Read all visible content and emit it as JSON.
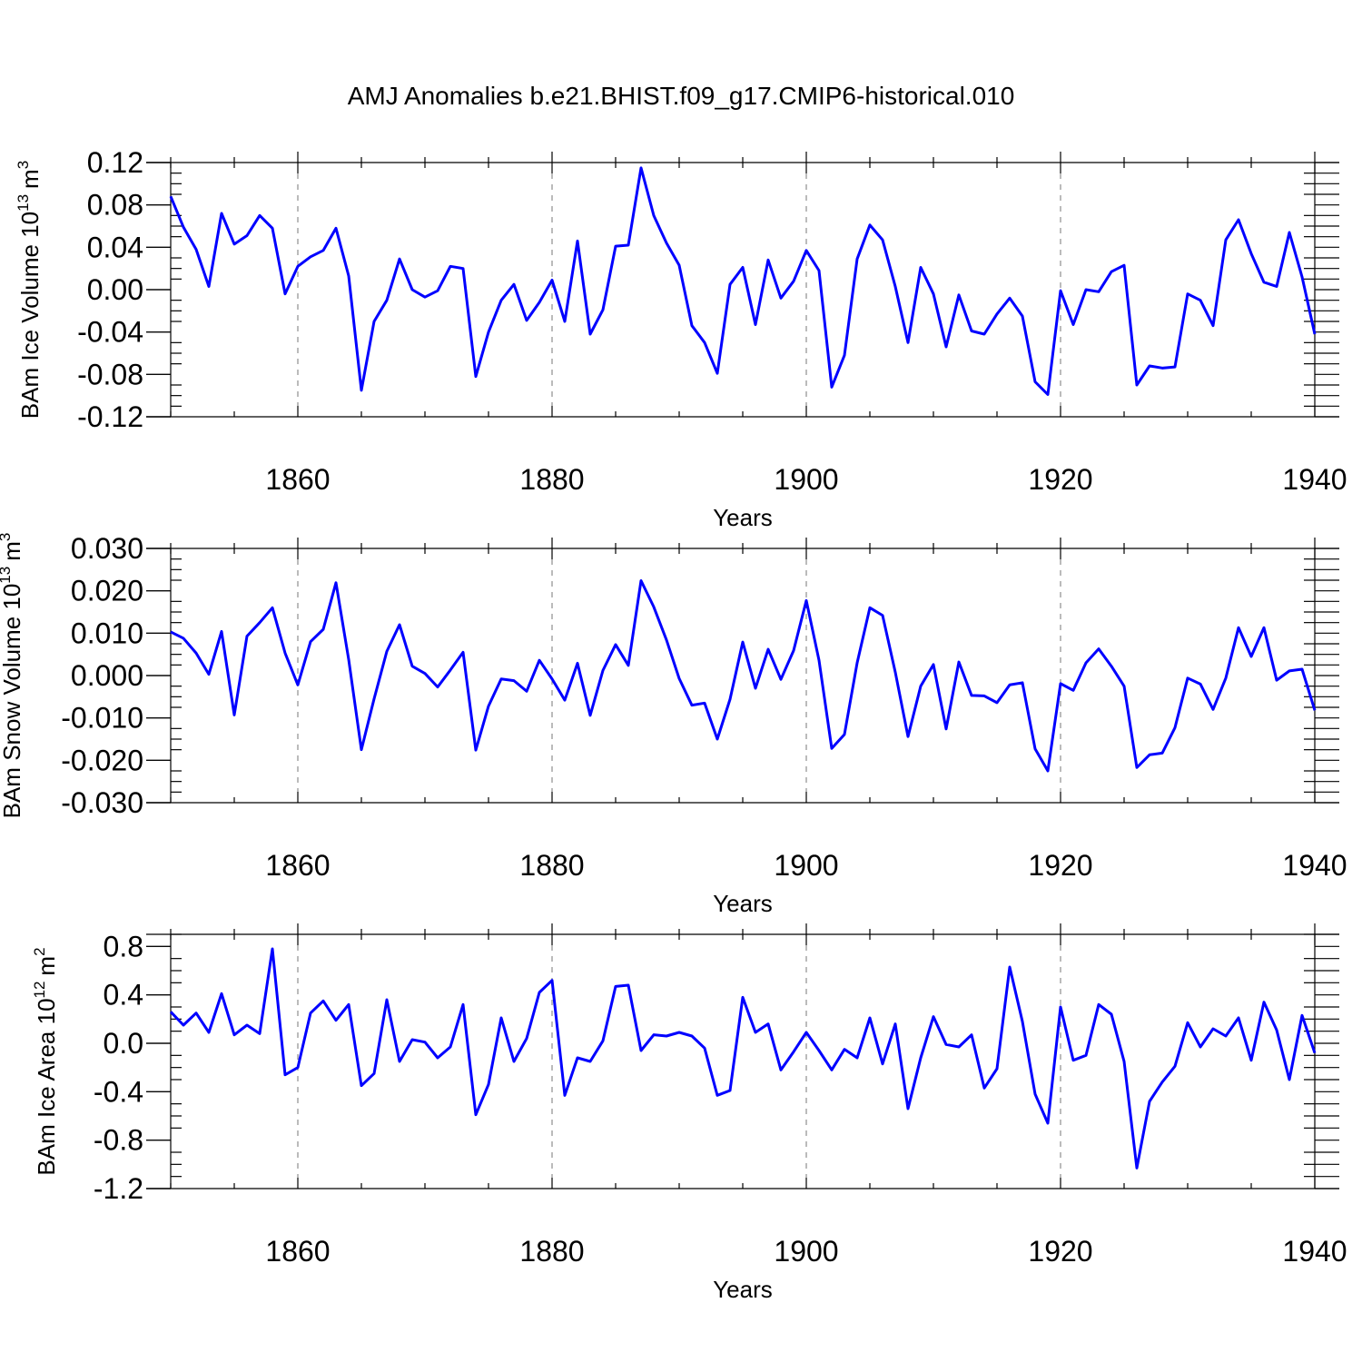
{
  "figure_title": "AMJ Anomalies b.e21.BHIST.f09_g17.CMIP6-historical.010",
  "line_color": "#0000ff",
  "chart_data": [
    {
      "type": "line",
      "ylabel": "BAm Ice Volume 10",
      "ylabel_sup": "13",
      "ylabel_unit": "m",
      "ylabel_unit_sup": "3",
      "xlabel": "Years",
      "xlim": [
        1850,
        1940
      ],
      "ylim": [
        -0.12,
        0.12
      ],
      "xticks": [
        "1860",
        "1880",
        "1900",
        "1920",
        "1940"
      ],
      "xtick_values": [
        1860,
        1880,
        1900,
        1920,
        1940
      ],
      "yticks": [
        "0.12",
        "0.08",
        "0.04",
        "0.00",
        "-0.04",
        "-0.08",
        "-0.12"
      ],
      "ytick_values": [
        0.12,
        0.08,
        0.04,
        0.0,
        -0.04,
        -0.08,
        -0.12
      ],
      "grid": "dashed vertical at major x ticks",
      "x_start": 1850,
      "values": [
        0.088,
        0.059,
        0.038,
        0.003,
        0.072,
        0.043,
        0.051,
        0.07,
        0.058,
        -0.004,
        0.022,
        0.031,
        0.037,
        0.058,
        0.013,
        -0.095,
        -0.03,
        -0.01,
        0.029,
        0.0,
        -0.007,
        -0.001,
        0.022,
        0.02,
        -0.082,
        -0.04,
        -0.01,
        0.005,
        -0.029,
        -0.012,
        0.009,
        -0.03,
        0.046,
        -0.042,
        -0.019,
        0.041,
        0.042,
        0.115,
        0.07,
        0.044,
        0.023,
        -0.034,
        -0.05,
        -0.079,
        0.005,
        0.021,
        -0.033,
        0.028,
        -0.008,
        0.008,
        0.037,
        0.018,
        -0.092,
        -0.062,
        0.029,
        0.061,
        0.047,
        0.003,
        -0.05,
        0.021,
        -0.004,
        -0.054,
        -0.005,
        -0.039,
        -0.042,
        -0.023,
        -0.008,
        -0.025,
        -0.087,
        -0.099,
        -0.001,
        -0.033,
        0.0,
        -0.002,
        0.017,
        0.023,
        -0.09,
        -0.072,
        -0.074,
        -0.073,
        -0.004,
        -0.01,
        -0.034,
        0.047,
        0.066,
        0.034,
        0.007,
        0.003,
        0.054,
        0.012,
        -0.042
      ]
    },
    {
      "type": "line",
      "ylabel": "BAm Snow Volume 10",
      "ylabel_sup": "13",
      "ylabel_unit": "m",
      "ylabel_unit_sup": "3",
      "xlabel": "Years",
      "xlim": [
        1850,
        1940
      ],
      "ylim": [
        -0.03,
        0.03
      ],
      "xticks": [
        "1860",
        "1880",
        "1900",
        "1920",
        "1940"
      ],
      "xtick_values": [
        1860,
        1880,
        1900,
        1920,
        1940
      ],
      "yticks": [
        "0.030",
        "0.020",
        "0.010",
        "0.000",
        "-0.010",
        "-0.020",
        "-0.030"
      ],
      "ytick_values": [
        0.03,
        0.02,
        0.01,
        0.0,
        -0.01,
        -0.02,
        -0.03
      ],
      "grid": "dashed vertical at major x ticks",
      "x_start": 1850,
      "values": [
        0.0103,
        0.0088,
        0.0053,
        0.0003,
        0.0104,
        -0.0093,
        0.0093,
        0.0125,
        0.016,
        0.0053,
        -0.0022,
        0.008,
        0.0109,
        0.0219,
        0.0038,
        -0.0175,
        -0.0055,
        0.0057,
        0.012,
        0.0022,
        0.0005,
        -0.0027,
        0.0013,
        0.0055,
        -0.0176,
        -0.0072,
        -0.0008,
        -0.0012,
        -0.0037,
        0.0036,
        -0.0008,
        -0.0058,
        0.0029,
        -0.0094,
        0.0012,
        0.0073,
        0.0024,
        0.0224,
        0.0162,
        0.0084,
        -0.0007,
        -0.007,
        -0.0065,
        -0.015,
        -0.0056,
        0.0079,
        -0.003,
        0.0062,
        -0.0009,
        0.0059,
        0.0177,
        0.0036,
        -0.0172,
        -0.0139,
        0.003,
        0.016,
        0.0142,
        0.0008,
        -0.0144,
        -0.0025,
        0.0026,
        -0.0126,
        0.0032,
        -0.0047,
        -0.0048,
        -0.0064,
        -0.0022,
        -0.0017,
        -0.0173,
        -0.0225,
        -0.0019,
        -0.0035,
        0.003,
        0.0063,
        0.0022,
        -0.0025,
        -0.0217,
        -0.0187,
        -0.0183,
        -0.0123,
        -0.0006,
        -0.002,
        -0.008,
        -0.0006,
        0.0113,
        0.0045,
        0.0113,
        -0.0011,
        0.0011,
        0.0015,
        -0.0082
      ]
    },
    {
      "type": "line",
      "ylabel": "BAm Ice Area 10",
      "ylabel_sup": "12",
      "ylabel_unit": "m",
      "ylabel_unit_sup": "2",
      "xlabel": "Years",
      "xlim": [
        1850,
        1940
      ],
      "ylim": [
        -1.2,
        0.9
      ],
      "xticks": [
        "1860",
        "1880",
        "1900",
        "1920",
        "1940"
      ],
      "xtick_values": [
        1860,
        1880,
        1900,
        1920,
        1940
      ],
      "yticks": [
        "0.8",
        "0.4",
        "0.0",
        "-0.4",
        "-0.8",
        "-1.2"
      ],
      "ytick_values": [
        0.8,
        0.4,
        0.0,
        -0.4,
        -0.8,
        -1.2
      ],
      "grid": "dashed vertical at major x ticks",
      "x_start": 1850,
      "values": [
        0.26,
        0.15,
        0.25,
        0.09,
        0.41,
        0.07,
        0.15,
        0.08,
        0.78,
        -0.26,
        -0.2,
        0.25,
        0.35,
        0.19,
        0.32,
        -0.35,
        -0.25,
        0.36,
        -0.15,
        0.03,
        0.01,
        -0.12,
        -0.03,
        0.32,
        -0.59,
        -0.34,
        0.21,
        -0.15,
        0.04,
        0.42,
        0.52,
        -0.43,
        -0.12,
        -0.15,
        0.02,
        0.47,
        0.48,
        -0.06,
        0.07,
        0.06,
        0.09,
        0.06,
        -0.04,
        -0.43,
        -0.39,
        0.38,
        0.09,
        0.16,
        -0.22,
        -0.07,
        0.09,
        -0.06,
        -0.22,
        -0.05,
        -0.12,
        0.21,
        -0.17,
        0.16,
        -0.54,
        -0.12,
        0.22,
        -0.01,
        -0.03,
        0.07,
        -0.37,
        -0.21,
        0.63,
        0.18,
        -0.42,
        -0.66,
        0.3,
        -0.14,
        -0.1,
        0.32,
        0.24,
        -0.15,
        -1.03,
        -0.48,
        -0.32,
        -0.19,
        0.17,
        -0.03,
        0.12,
        0.06,
        0.21,
        -0.14,
        0.34,
        0.11,
        -0.3,
        0.23,
        -0.08
      ]
    }
  ]
}
